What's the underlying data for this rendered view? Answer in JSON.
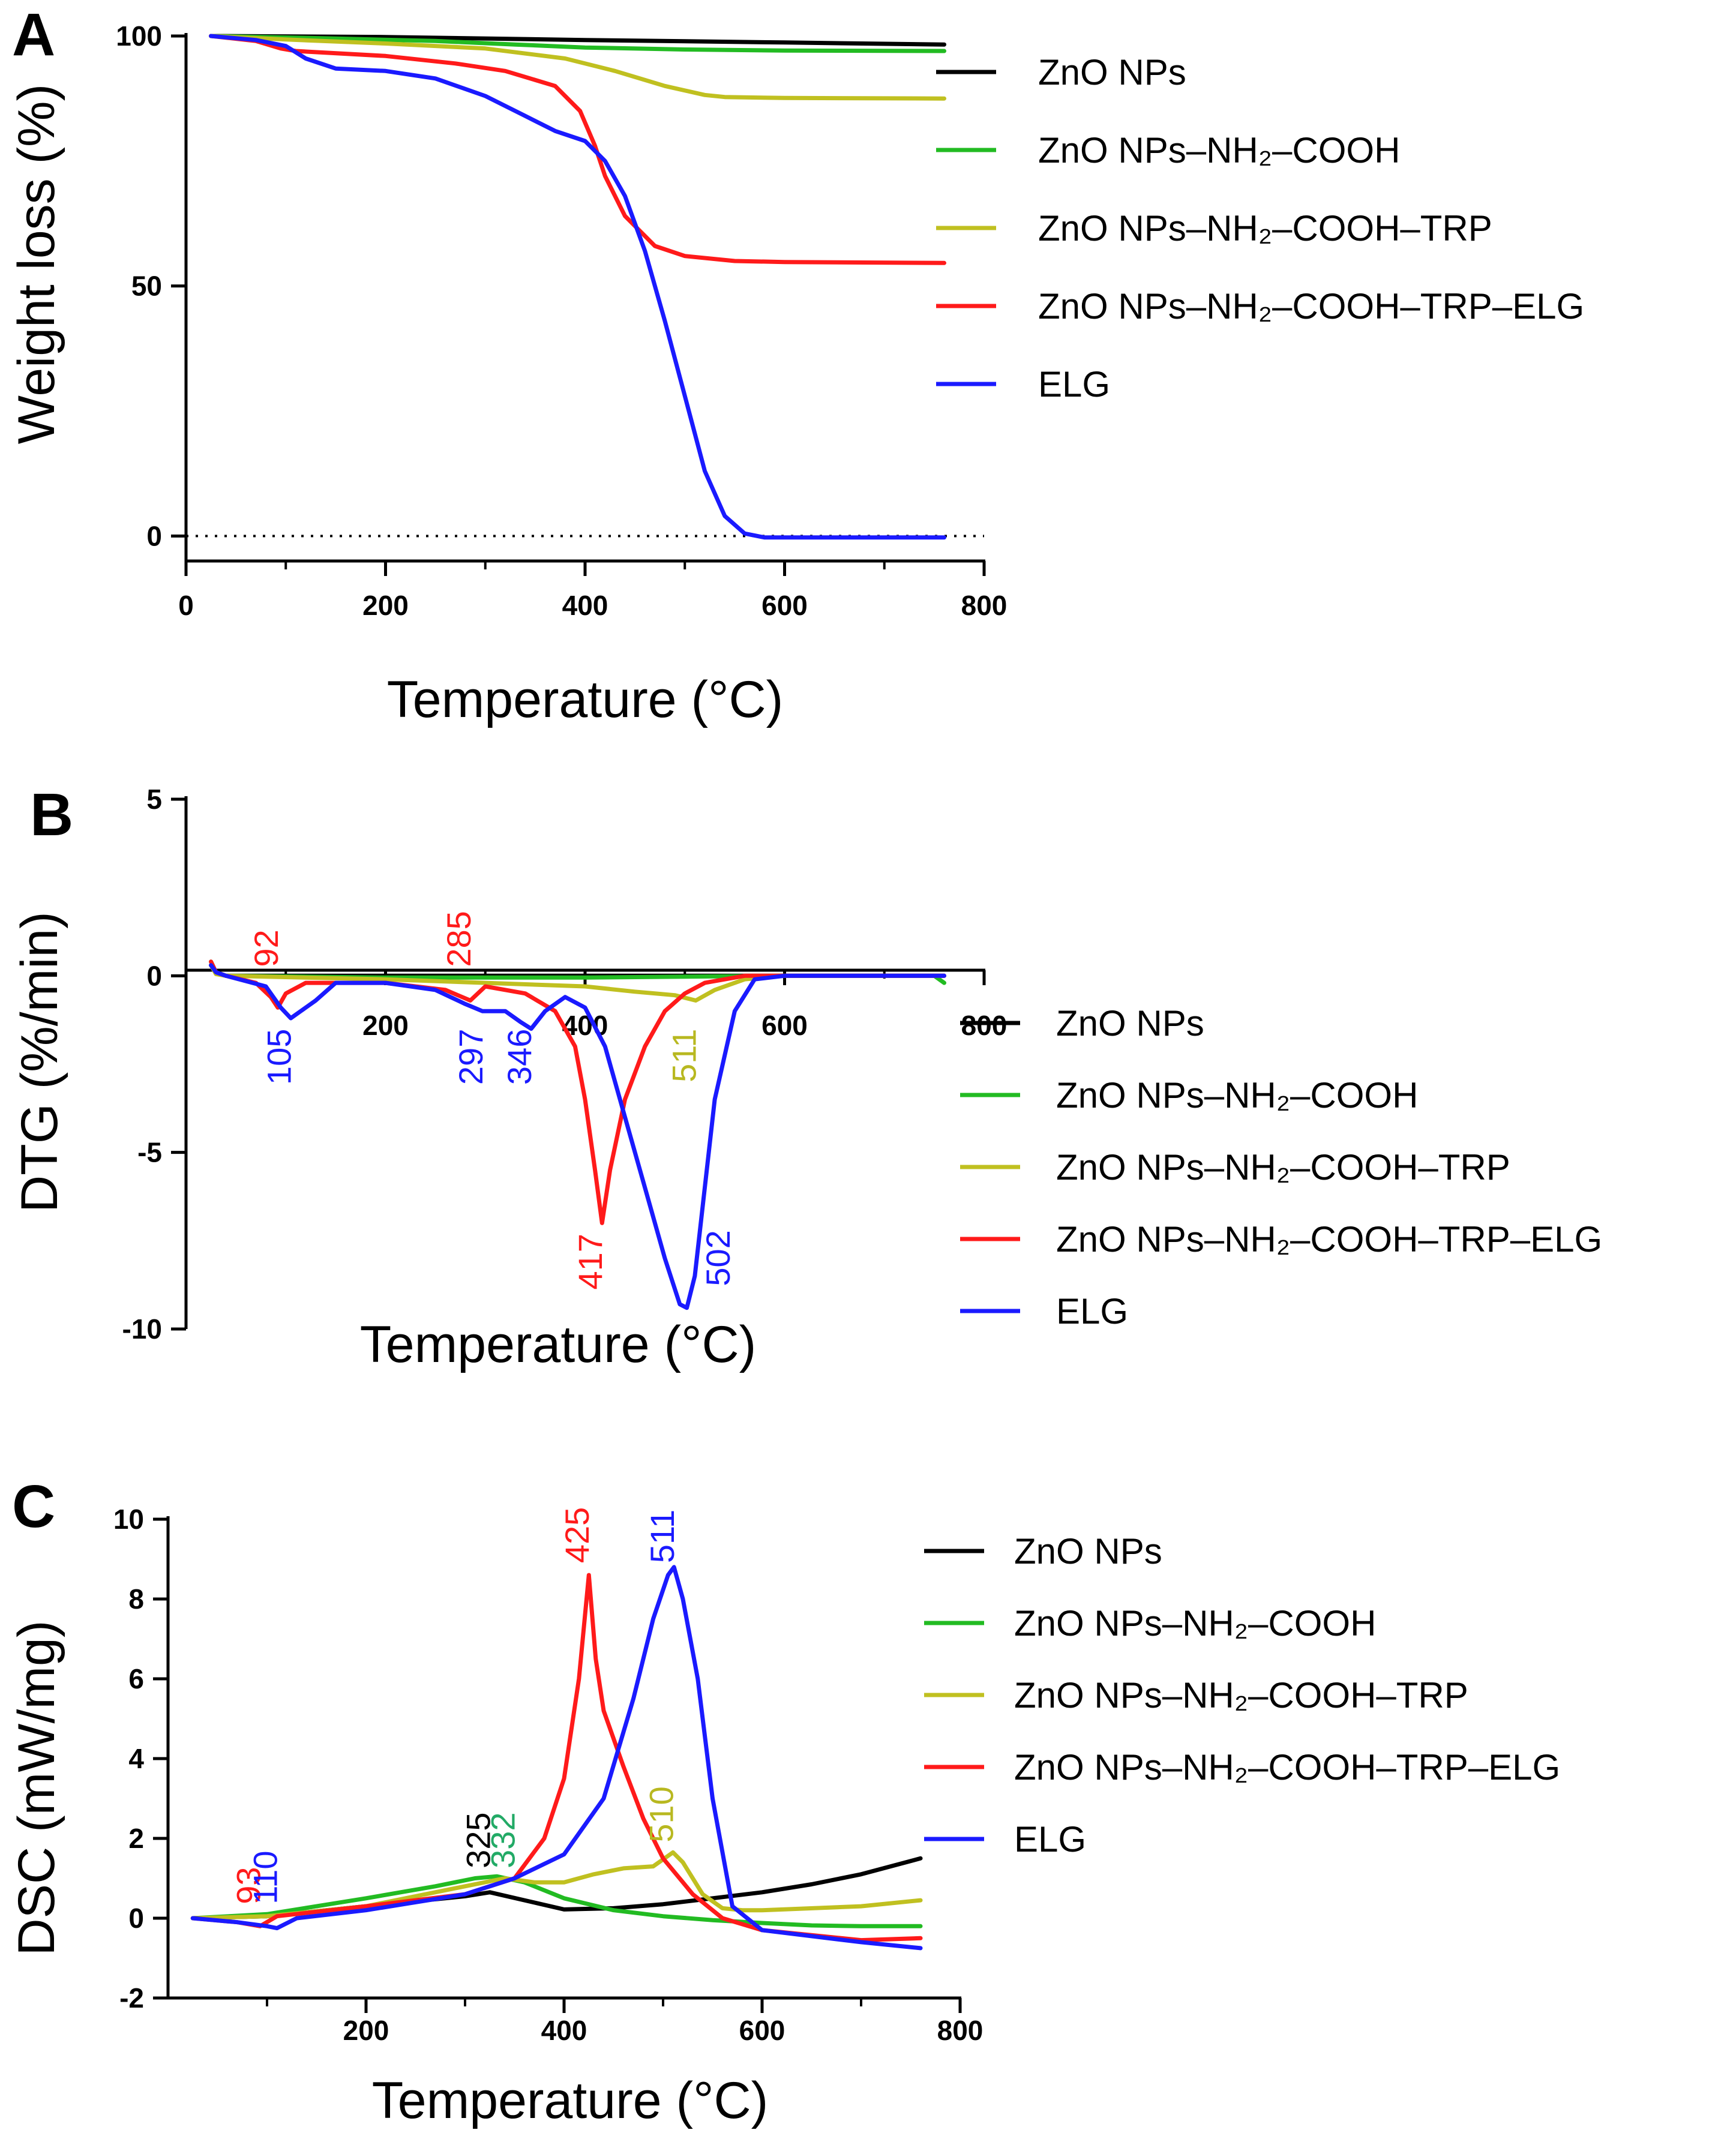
{
  "chart_data": [
    {
      "panel": "A",
      "type": "line",
      "xlabel": "Temperature (°C)",
      "ylabel": "Weight loss (%)",
      "xlim": [
        0,
        800
      ],
      "ylim": [
        -5,
        100
      ],
      "xticks": [
        0,
        200,
        400,
        600,
        800
      ],
      "yticks": [
        0,
        50,
        100
      ],
      "reference_line": {
        "y": 0,
        "style": "dotted"
      },
      "legend": [
        "ZnO NPs",
        "ZnO NPs–NH₂–COOH",
        "ZnO NPs–NH₂–COOH–TRP",
        "ZnO NPs–NH₂–COOH–TRP–ELG",
        "ELG"
      ],
      "series": [
        {
          "name": "ZnO NPs",
          "color": "#000000",
          "x": [
            25,
            200,
            400,
            600,
            760
          ],
          "y": [
            100,
            99.8,
            99.2,
            98.7,
            98.3
          ]
        },
        {
          "name": "ZnO NPs–NH₂–COOH",
          "color": "#22bb22",
          "x": [
            25,
            150,
            250,
            330,
            400,
            500,
            600,
            760
          ],
          "y": [
            100,
            99.5,
            99,
            98.3,
            97.7,
            97.3,
            97.1,
            97
          ]
        },
        {
          "name": "ZnO NPs–NH₂–COOH–TRP",
          "color": "#c0c020",
          "x": [
            25,
            100,
            200,
            300,
            380,
            430,
            480,
            520,
            540,
            600,
            760
          ],
          "y": [
            100,
            99.3,
            98.5,
            97.5,
            95.5,
            93,
            90,
            88.2,
            87.8,
            87.6,
            87.5
          ]
        },
        {
          "name": "ZnO NPs–NH₂–COOH–TRP–ELG",
          "color": "#ff1a1a",
          "x": [
            25,
            70,
            95,
            110,
            200,
            270,
            320,
            370,
            395,
            410,
            420,
            440,
            470,
            500,
            550,
            600,
            760
          ],
          "y": [
            100,
            99,
            97.5,
            97,
            96,
            94.5,
            93,
            90,
            85,
            78,
            72,
            64,
            58,
            56,
            55,
            54.8,
            54.6
          ]
        },
        {
          "name": "ELG",
          "color": "#1a1aff",
          "x": [
            25,
            70,
            100,
            120,
            150,
            200,
            250,
            300,
            340,
            370,
            400,
            420,
            440,
            460,
            480,
            500,
            520,
            540,
            560,
            580,
            600,
            760
          ],
          "y": [
            100,
            99.2,
            98,
            95.5,
            93.5,
            93,
            91.5,
            88,
            84,
            81,
            79,
            75,
            68,
            57,
            43,
            28,
            13,
            4,
            0.5,
            -0.3,
            -0.3,
            -0.3
          ]
        }
      ]
    },
    {
      "panel": "B",
      "type": "line",
      "xlabel": "Temperature (°C)",
      "ylabel": "DTG (%/min)",
      "xlim": [
        0,
        800
      ],
      "ylim": [
        -10,
        5
      ],
      "xticks": [
        200,
        400,
        600,
        800
      ],
      "yticks": [
        5,
        0,
        -5,
        -10
      ],
      "legend": [
        "ZnO NPs",
        "ZnO NPs–NH₂–COOH",
        "ZnO NPs–NH₂–COOH–TRP",
        "ZnO NPs–NH₂–COOH–TRP–ELG",
        "ELG"
      ],
      "annotations": [
        {
          "text": "92",
          "x": 92,
          "y": 0.25,
          "color": "#ff1a1a",
          "anchor": "start"
        },
        {
          "text": "285",
          "x": 285,
          "y": 0.25,
          "color": "#ff1a1a",
          "anchor": "start"
        },
        {
          "text": "105",
          "x": 105,
          "y": -1.5,
          "color": "#1a1aff",
          "anchor": "end"
        },
        {
          "text": "297",
          "x": 297,
          "y": -1.5,
          "color": "#1a1aff",
          "anchor": "end"
        },
        {
          "text": "346",
          "x": 346,
          "y": -1.5,
          "color": "#1a1aff",
          "anchor": "end"
        },
        {
          "text": "511",
          "x": 511,
          "y": -1.5,
          "color": "#b8b820",
          "anchor": "end"
        },
        {
          "text": "417",
          "x": 417,
          "y": -7.3,
          "color": "#ff1a1a",
          "anchor": "end"
        },
        {
          "text": "502",
          "x": 545,
          "y": -7.2,
          "color": "#1a1aff",
          "anchor": "end"
        }
      ],
      "series": [
        {
          "name": "ZnO NPs",
          "color": "#000000",
          "x": [
            25,
            30,
            40,
            100,
            400,
            600,
            760
          ],
          "y": [
            0.3,
            0.1,
            0,
            0,
            0,
            0,
            0
          ]
        },
        {
          "name": "ZnO NPs–NH₂–COOH",
          "color": "#22bb22",
          "x": [
            25,
            30,
            40,
            200,
            400,
            600,
            750,
            760
          ],
          "y": [
            0.4,
            0.1,
            0,
            -0.05,
            -0.05,
            0,
            0,
            -0.2
          ]
        },
        {
          "name": "ZnO NPs–NH₂–COOH–TRP",
          "color": "#c0c020",
          "x": [
            25,
            30,
            40,
            200,
            300,
            400,
            450,
            490,
            511,
            530,
            560,
            600,
            760
          ],
          "y": [
            0.3,
            0.05,
            0,
            -0.1,
            -0.2,
            -0.3,
            -0.45,
            -0.55,
            -0.7,
            -0.4,
            -0.1,
            0,
            0
          ]
        },
        {
          "name": "ZnO NPs–NH₂–COOH–TRP–ELG",
          "color": "#ff1a1a",
          "x": [
            25,
            30,
            40,
            70,
            85,
            92,
            100,
            120,
            200,
            260,
            285,
            300,
            340,
            370,
            390,
            400,
            410,
            417,
            425,
            440,
            460,
            480,
            500,
            520,
            560,
            600,
            760
          ],
          "y": [
            0.4,
            0.1,
            0,
            -0.2,
            -0.6,
            -0.9,
            -0.5,
            -0.2,
            -0.2,
            -0.4,
            -0.7,
            -0.3,
            -0.5,
            -1.0,
            -2.0,
            -3.5,
            -5.5,
            -7.0,
            -5.5,
            -3.5,
            -2.0,
            -1.0,
            -0.5,
            -0.2,
            0,
            0,
            0
          ]
        },
        {
          "name": "ELG",
          "color": "#1a1aff",
          "x": [
            25,
            30,
            40,
            80,
            95,
            105,
            115,
            130,
            150,
            200,
            250,
            280,
            297,
            320,
            335,
            346,
            360,
            380,
            400,
            420,
            440,
            460,
            480,
            495,
            502,
            510,
            520,
            530,
            550,
            570,
            600,
            760
          ],
          "y": [
            0.3,
            0.1,
            0,
            -0.3,
            -0.9,
            -1.2,
            -1.0,
            -0.7,
            -0.2,
            -0.2,
            -0.4,
            -0.8,
            -1.0,
            -1.0,
            -1.3,
            -1.5,
            -1.0,
            -0.6,
            -0.9,
            -2.0,
            -4.0,
            -6.0,
            -8.0,
            -9.3,
            -9.4,
            -8.5,
            -6.0,
            -3.5,
            -1.0,
            -0.1,
            0,
            0
          ]
        }
      ]
    },
    {
      "panel": "C",
      "type": "line",
      "xlabel": "Temperature (°C)",
      "ylabel": "DSC (mW/mg)",
      "xlim": [
        0,
        800
      ],
      "ylim": [
        -2,
        10
      ],
      "xticks": [
        200,
        400,
        600,
        800
      ],
      "yticks": [
        -2,
        0,
        2,
        4,
        6,
        8,
        10
      ],
      "legend": [
        "ZnO NPs",
        "ZnO NPs–NH₂–COOH",
        "ZnO NPs–NH₂–COOH–TRP",
        "ZnO NPs–NH₂–COOH–TRP–ELG",
        "ELG"
      ],
      "annotations": [
        {
          "text": "93",
          "x": 93,
          "y": 0.35,
          "color": "#ff1a1a",
          "anchor": "start"
        },
        {
          "text": "110",
          "x": 110,
          "y": 0.35,
          "color": "#1a1aff",
          "anchor": "start"
        },
        {
          "text": "325",
          "x": 325,
          "y": 1.25,
          "color": "#000000",
          "anchor": "start"
        },
        {
          "text": "332",
          "x": 350,
          "y": 1.25,
          "color": "#22aa66",
          "anchor": "start"
        },
        {
          "text": "425",
          "x": 425,
          "y": 8.9,
          "color": "#ff1a1a",
          "anchor": "start"
        },
        {
          "text": "511",
          "x": 511,
          "y": 8.9,
          "color": "#1a1aff",
          "anchor": "start"
        },
        {
          "text": "510",
          "x": 510,
          "y": 1.9,
          "color": "#b8b820",
          "anchor": "start"
        }
      ],
      "series": [
        {
          "name": "ZnO NPs",
          "color": "#000000",
          "x": [
            25,
            100,
            200,
            300,
            325,
            360,
            400,
            450,
            500,
            550,
            600,
            650,
            700,
            760
          ],
          "y": [
            0,
            0.05,
            0.3,
            0.55,
            0.65,
            0.45,
            0.22,
            0.25,
            0.35,
            0.5,
            0.65,
            0.85,
            1.1,
            1.5
          ]
        },
        {
          "name": "ZnO NPs–NH₂–COOH",
          "color": "#22bb22",
          "x": [
            25,
            100,
            200,
            270,
            310,
            332,
            360,
            400,
            450,
            500,
            550,
            600,
            650,
            700,
            760
          ],
          "y": [
            0,
            0.1,
            0.5,
            0.8,
            1.0,
            1.05,
            0.9,
            0.5,
            0.2,
            0.05,
            -0.05,
            -0.12,
            -0.18,
            -0.2,
            -0.2
          ]
        },
        {
          "name": "ZnO NPs–NH₂–COOH–TRP",
          "color": "#c0c020",
          "x": [
            25,
            100,
            200,
            300,
            340,
            370,
            400,
            430,
            460,
            490,
            510,
            520,
            540,
            560,
            580,
            600,
            700,
            760
          ],
          "y": [
            0,
            0.05,
            0.3,
            0.8,
            1.0,
            0.9,
            0.9,
            1.1,
            1.25,
            1.3,
            1.65,
            1.4,
            0.6,
            0.25,
            0.2,
            0.2,
            0.3,
            0.45
          ]
        },
        {
          "name": "ZnO NPs–NH₂–COOH–TRP–ELG",
          "color": "#ff1a1a",
          "x": [
            25,
            70,
            93,
            110,
            200,
            300,
            350,
            380,
            400,
            415,
            425,
            432,
            440,
            460,
            480,
            500,
            530,
            560,
            600,
            700,
            760
          ],
          "y": [
            0,
            -0.1,
            -0.2,
            0.05,
            0.3,
            0.6,
            1.0,
            2.0,
            3.5,
            6.0,
            8.6,
            6.5,
            5.2,
            3.8,
            2.5,
            1.5,
            0.6,
            0,
            -0.3,
            -0.55,
            -0.5
          ]
        },
        {
          "name": "ELG",
          "color": "#1a1aff",
          "x": [
            25,
            70,
            100,
            110,
            130,
            200,
            300,
            350,
            400,
            440,
            470,
            490,
            505,
            511,
            520,
            535,
            550,
            570,
            600,
            700,
            760
          ],
          "y": [
            0,
            -0.1,
            -0.2,
            -0.25,
            0,
            0.2,
            0.6,
            1.0,
            1.6,
            3.0,
            5.5,
            7.5,
            8.6,
            8.8,
            8.0,
            6.0,
            3.0,
            0.3,
            -0.3,
            -0.6,
            -0.75
          ]
        }
      ]
    }
  ]
}
